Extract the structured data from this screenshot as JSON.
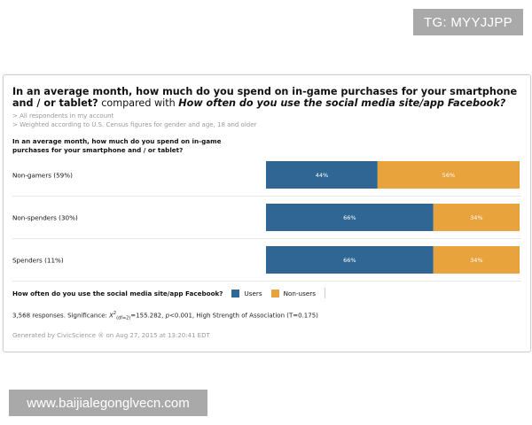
{
  "watermarks": {
    "top": "TG: MYYJJPP",
    "bottom": "www.baijialegonglvecn.com"
  },
  "card": {
    "title_bold": "In an average month, how much do you spend on in-game purchases for your smartphone and / or tablet?",
    "title_connector": " compared with ",
    "title_q2": "How often do you use the social media site/app Facebook?",
    "note1": "> All respondents in my account",
    "note2": "> Weighted according to U.S. Census figures for gender and age, 18 and older",
    "stats_prefix": "3,568 responses. Significance: ",
    "stats_chi": "X",
    "stats_sup": "2",
    "stats_sub": "(df=2)",
    "stats_value": "=155.282, ",
    "stats_p_italic": "p",
    "stats_rest": "<0.001, High Strength of Association (T=0.175)",
    "generated": "Generated by CivicScience ® on Aug 27, 2015 at 13:20:41 EDT"
  },
  "colors": {
    "users": "#2f6694",
    "non_users": "#e8a33c",
    "divider": "#e6e6e6"
  },
  "chart_data": {
    "type": "bar",
    "orientation": "horizontal",
    "stacked": true,
    "percent_stacked": true,
    "title": "In an average month, how much do you spend on in-game purchases for your smartphone and / or tablet?",
    "legend_title": "How often do you use the social media site/app Facebook?",
    "legend_position": "bottom-left",
    "categories": [
      "Non-gamers (59%)",
      "Non-spenders (30%)",
      "Spenders (11%)"
    ],
    "series": [
      {
        "name": "Users",
        "values": [
          44,
          66,
          66
        ]
      },
      {
        "name": "Non-users",
        "values": [
          56,
          34,
          34
        ]
      }
    ],
    "value_suffix": "%",
    "xlim": [
      0,
      100
    ],
    "grid": false
  }
}
